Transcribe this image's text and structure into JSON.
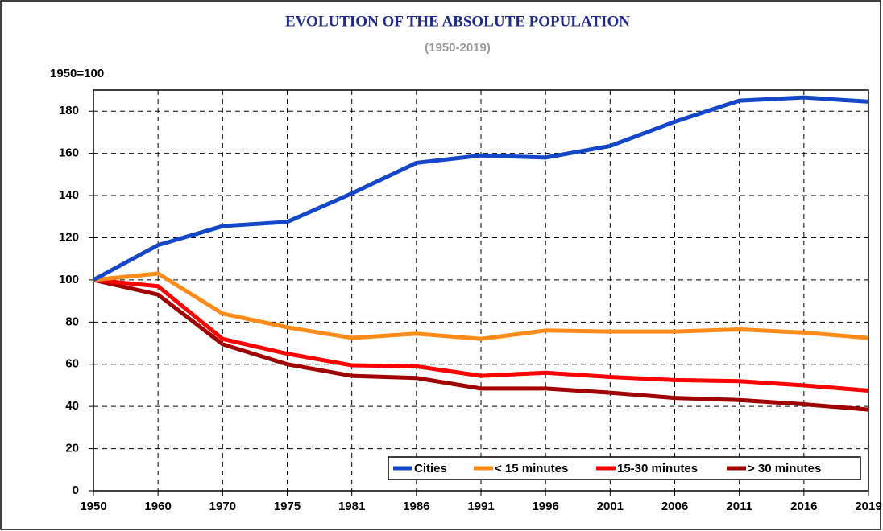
{
  "chart_data": {
    "type": "line",
    "title": "EVOLUTION OF THE ABSOLUTE POPULATION",
    "subtitle": "(1950-2019)",
    "y_label": "1950=100",
    "categories": [
      "1950",
      "1960",
      "1970",
      "1975",
      "1981",
      "1986",
      "1991",
      "1996",
      "2001",
      "2006",
      "2011",
      "2016",
      "2019"
    ],
    "series": [
      {
        "name": "Cities",
        "color": "#1446c8",
        "values": [
          100,
          116.5,
          125.5,
          127.5,
          141,
          155.5,
          159,
          158,
          163.5,
          175,
          185,
          186.5,
          184.5
        ]
      },
      {
        "name": "< 15 minutes",
        "color": "#ff8c1a",
        "values": [
          100,
          103,
          84,
          77.5,
          72.5,
          74.5,
          72,
          76,
          75.5,
          75.5,
          76.5,
          75,
          72.5
        ]
      },
      {
        "name": "15-30 minutes",
        "color": "#ff0000",
        "values": [
          100,
          97,
          72,
          65,
          59.5,
          59,
          54.5,
          56,
          54,
          52.5,
          52,
          50,
          47.5
        ]
      },
      {
        "name": "> 30 minutes",
        "color": "#a00000",
        "values": [
          100,
          93,
          69.5,
          60,
          54.5,
          53.5,
          48.5,
          48.5,
          46.5,
          44,
          43,
          41,
          38.5
        ]
      }
    ],
    "ylim": [
      0,
      190
    ],
    "yticks": [
      0,
      20,
      40,
      60,
      80,
      100,
      120,
      140,
      160,
      180
    ],
    "grid": true,
    "legend": "bottom-right"
  }
}
